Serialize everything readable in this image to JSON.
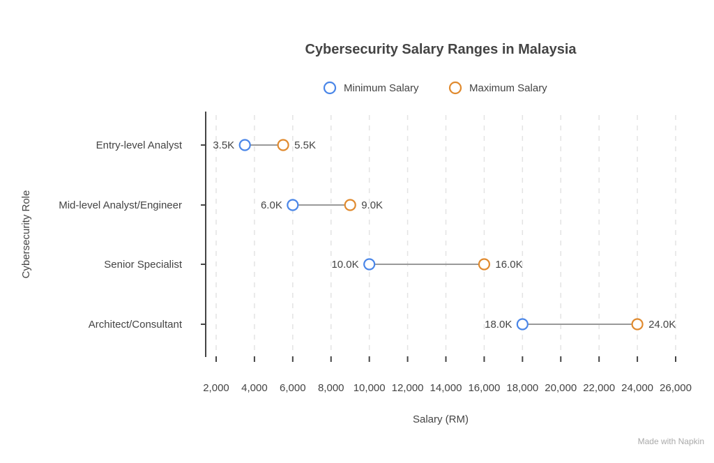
{
  "chart_data": {
    "type": "dumbbell",
    "title": "Cybersecurity Salary Ranges in Malaysia",
    "xlabel": "Salary (RM)",
    "ylabel": "Cybersecurity Role",
    "xlim": [
      2000,
      26000
    ],
    "xticks": [
      2000,
      4000,
      6000,
      8000,
      10000,
      12000,
      14000,
      16000,
      18000,
      20000,
      22000,
      24000,
      26000
    ],
    "xtick_labels": [
      "2,000",
      "4,000",
      "6,000",
      "8,000",
      "10,000",
      "12,000",
      "14,000",
      "16,000",
      "18,000",
      "20,000",
      "22,000",
      "24,000",
      "26,000"
    ],
    "grid": "vertical dashed",
    "legend_position": "top-center",
    "categories": [
      "Entry-level Analyst",
      "Mid-level Analyst/Engineer",
      "Senior Specialist",
      "Architect/Consultant"
    ],
    "series": [
      {
        "name": "Minimum Salary",
        "color": "#4a86e8",
        "values": [
          3500,
          6000,
          10000,
          18000
        ],
        "labels": [
          "3.5K",
          "6.0K",
          "10.0K",
          "18.0K"
        ]
      },
      {
        "name": "Maximum Salary",
        "color": "#e08a2e",
        "values": [
          5500,
          9000,
          16000,
          24000
        ],
        "labels": [
          "5.5K",
          "9.0K",
          "16.0K",
          "24.0K"
        ]
      }
    ]
  },
  "watermark": "Made with Napkin"
}
